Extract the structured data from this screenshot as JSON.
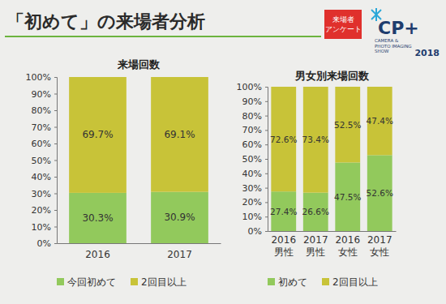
{
  "header": {
    "title": "「初めて」の来場者分析",
    "badge": [
      "来場者",
      "アンケート"
    ],
    "logo": {
      "name": "CP+",
      "subtitle": [
        "CAMERA &",
        "PHOTO IMAGING",
        "SHOW"
      ],
      "year": "2018"
    }
  },
  "chart_data": [
    {
      "type": "bar",
      "stacked": true,
      "title": "来場回数",
      "categories": [
        "2016",
        "2017"
      ],
      "series": [
        {
          "name": "今回初めて",
          "color": "#92c95c",
          "values": [
            30.3,
            30.9
          ],
          "value_labels": [
            "30.3%",
            "30.9%"
          ]
        },
        {
          "name": "2回目以上",
          "color": "#c8c338",
          "values": [
            69.7,
            69.1
          ],
          "value_labels": [
            "69.7%",
            "69.1%"
          ]
        }
      ],
      "ylim": [
        0,
        100
      ],
      "yticks": [
        {
          "value": 0,
          "label": "0%"
        },
        {
          "value": 10,
          "label": "10%"
        },
        {
          "value": 20,
          "label": "20%"
        },
        {
          "value": 30,
          "label": "30%"
        },
        {
          "value": 40,
          "label": "40%"
        },
        {
          "value": 50,
          "label": "50%"
        },
        {
          "value": 60,
          "label": "60%"
        },
        {
          "value": 70,
          "label": "70%"
        },
        {
          "value": 80,
          "label": "80%"
        },
        {
          "value": 90,
          "label": "90%"
        },
        {
          "value": 100,
          "label": "100%"
        }
      ],
      "grid": false,
      "legend": "bottom",
      "data_labels": true
    },
    {
      "type": "bar",
      "stacked": true,
      "title": "男女別来場回数",
      "categories": [
        "2016\n男性",
        "2017\n男性",
        "2016\n女性",
        "2017\n女性"
      ],
      "series": [
        {
          "name": "初めて",
          "color": "#92c95c",
          "values": [
            27.4,
            26.6,
            47.5,
            52.6
          ],
          "value_labels": [
            "27.4%",
            "26.6%",
            "47.5%",
            "52.6%"
          ]
        },
        {
          "name": "2回目以上",
          "color": "#c8c338",
          "values": [
            72.6,
            73.4,
            52.5,
            47.4
          ],
          "value_labels": [
            "72.6%",
            "73.4%",
            "52.5%",
            "47.4%"
          ]
        }
      ],
      "ylim": [
        0,
        100
      ],
      "yticks": [
        {
          "value": 0,
          "label": "0%"
        },
        {
          "value": 10,
          "label": "10%"
        },
        {
          "value": 20,
          "label": "20%"
        },
        {
          "value": 30,
          "label": "30%"
        },
        {
          "value": 40,
          "label": "40%"
        },
        {
          "value": 50,
          "label": "50%"
        },
        {
          "value": 60,
          "label": "60%"
        },
        {
          "value": 70,
          "label": "70%"
        },
        {
          "value": 80,
          "label": "80%"
        },
        {
          "value": 90,
          "label": "90%"
        },
        {
          "value": 100,
          "label": "100%"
        }
      ],
      "grid": false,
      "legend": "bottom",
      "data_labels": true
    }
  ]
}
